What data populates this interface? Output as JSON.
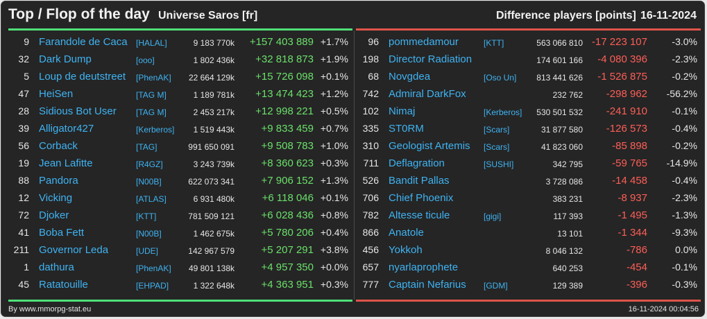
{
  "header": {
    "title": "Top / Flop of the day",
    "universe": "Universe Saros [fr]",
    "difference_label": "Difference players [points]",
    "date": "16-11-2024"
  },
  "colors": {
    "top_accent": "#4fe07a",
    "flop_accent": "#e0544a",
    "positive": "#6be06b",
    "negative": "#ff5e57",
    "player_link": "#3fb3f2",
    "background": "#252525"
  },
  "top": [
    {
      "rank": "9",
      "name": "Farandole de Caca",
      "alliance": "[HALAL]",
      "points": "9 183 770k",
      "diff": "+157 403 889",
      "pct": "+1.7%"
    },
    {
      "rank": "32",
      "name": "Dark Dump",
      "alliance": "[ooo]",
      "points": "1 802 436k",
      "diff": "+32 818 873",
      "pct": "+1.9%"
    },
    {
      "rank": "5",
      "name": "Loup de deutstreet",
      "alliance": "[PhenAK]",
      "points": "22 664 129k",
      "diff": "+15 726 098",
      "pct": "+0.1%"
    },
    {
      "rank": "47",
      "name": "HeiSen",
      "alliance": "[TAG M]",
      "points": "1 189 781k",
      "diff": "+13 474 423",
      "pct": "+1.2%"
    },
    {
      "rank": "28",
      "name": "Sidious Bot User",
      "alliance": "[TAG M]",
      "points": "2 453 217k",
      "diff": "+12 998 221",
      "pct": "+0.5%"
    },
    {
      "rank": "39",
      "name": "Alligator427",
      "alliance": "[Kerberos]",
      "points": "1 519 443k",
      "diff": "+9 833 459",
      "pct": "+0.7%"
    },
    {
      "rank": "56",
      "name": "Corback",
      "alliance": "[TAG]",
      "points": "991 650 091",
      "diff": "+9 508 783",
      "pct": "+1.0%"
    },
    {
      "rank": "19",
      "name": "Jean Lafitte",
      "alliance": "[R4GZ]",
      "points": "3 243 739k",
      "diff": "+8 360 623",
      "pct": "+0.3%"
    },
    {
      "rank": "88",
      "name": "Pandora",
      "alliance": "[N00B]",
      "points": "622 073 341",
      "diff": "+7 906 152",
      "pct": "+1.3%"
    },
    {
      "rank": "12",
      "name": "Vicking",
      "alliance": "[ATLAS]",
      "points": "6 931 480k",
      "diff": "+6 118 046",
      "pct": "+0.1%"
    },
    {
      "rank": "72",
      "name": "Djoker",
      "alliance": "[KTT]",
      "points": "781 509 121",
      "diff": "+6 028 436",
      "pct": "+0.8%"
    },
    {
      "rank": "41",
      "name": "Boba Fett",
      "alliance": "[N00B]",
      "points": "1 462 675k",
      "diff": "+5 780 206",
      "pct": "+0.4%"
    },
    {
      "rank": "211",
      "name": "Governor Leda",
      "alliance": "[UDE]",
      "points": "142 967 579",
      "diff": "+5 207 291",
      "pct": "+3.8%"
    },
    {
      "rank": "1",
      "name": "dathura",
      "alliance": "[PhenAK]",
      "points": "49 801 138k",
      "diff": "+4 957 350",
      "pct": "+0.0%"
    },
    {
      "rank": "45",
      "name": "Ratatouille",
      "alliance": "[EHPAD]",
      "points": "1 322 648k",
      "diff": "+4 363 951",
      "pct": "+0.3%"
    }
  ],
  "flop": [
    {
      "rank": "96",
      "name": "pommedamour",
      "alliance": "[KTT]",
      "points": "563 066 810",
      "diff": "-17 223 107",
      "pct": "-3.0%"
    },
    {
      "rank": "198",
      "name": "Director Radiation",
      "alliance": "",
      "points": "174 601 166",
      "diff": "-4 080 396",
      "pct": "-2.3%"
    },
    {
      "rank": "68",
      "name": "Novgdea",
      "alliance": "[Oso Un]",
      "points": "813 441 626",
      "diff": "-1 526 875",
      "pct": "-0.2%"
    },
    {
      "rank": "742",
      "name": "Admiral DarkFox",
      "alliance": "",
      "points": "232 762",
      "diff": "-298 962",
      "pct": "-56.2%"
    },
    {
      "rank": "102",
      "name": "Nimaj",
      "alliance": "[Kerberos]",
      "points": "530 501 532",
      "diff": "-241 910",
      "pct": "-0.1%"
    },
    {
      "rank": "335",
      "name": "ST0RM",
      "alliance": "[Scars]",
      "points": "31 877 580",
      "diff": "-126 573",
      "pct": "-0.4%"
    },
    {
      "rank": "310",
      "name": "Geologist Artemis",
      "alliance": "[Scars]",
      "points": "41 823 060",
      "diff": "-85 898",
      "pct": "-0.2%"
    },
    {
      "rank": "711",
      "name": "Deflagration",
      "alliance": "[SUSHI]",
      "points": "342 795",
      "diff": "-59 765",
      "pct": "-14.9%"
    },
    {
      "rank": "526",
      "name": "Bandit Pallas",
      "alliance": "",
      "points": "3 728 086",
      "diff": "-14 458",
      "pct": "-0.4%"
    },
    {
      "rank": "706",
      "name": "Chief Phoenix",
      "alliance": "",
      "points": "383 231",
      "diff": "-8 937",
      "pct": "-2.3%"
    },
    {
      "rank": "782",
      "name": "Altesse ticule",
      "alliance": "[gigi]",
      "points": "117 393",
      "diff": "-1 495",
      "pct": "-1.3%"
    },
    {
      "rank": "866",
      "name": "Anatole",
      "alliance": "",
      "points": "13 101",
      "diff": "-1 344",
      "pct": "-9.3%"
    },
    {
      "rank": "456",
      "name": "Yokkoh",
      "alliance": "",
      "points": "8 046 132",
      "diff": "-786",
      "pct": "0.0%"
    },
    {
      "rank": "657",
      "name": "nyarlaprophete",
      "alliance": "",
      "points": "640 253",
      "diff": "-454",
      "pct": "-0.1%"
    },
    {
      "rank": "777",
      "name": "Captain Nefarius",
      "alliance": "[GDM]",
      "points": "129 389",
      "diff": "-396",
      "pct": "-0.3%"
    }
  ],
  "footer": {
    "credit": "By www.mmorpg-stat.eu",
    "timestamp": "16-11-2024 00:04:56"
  }
}
